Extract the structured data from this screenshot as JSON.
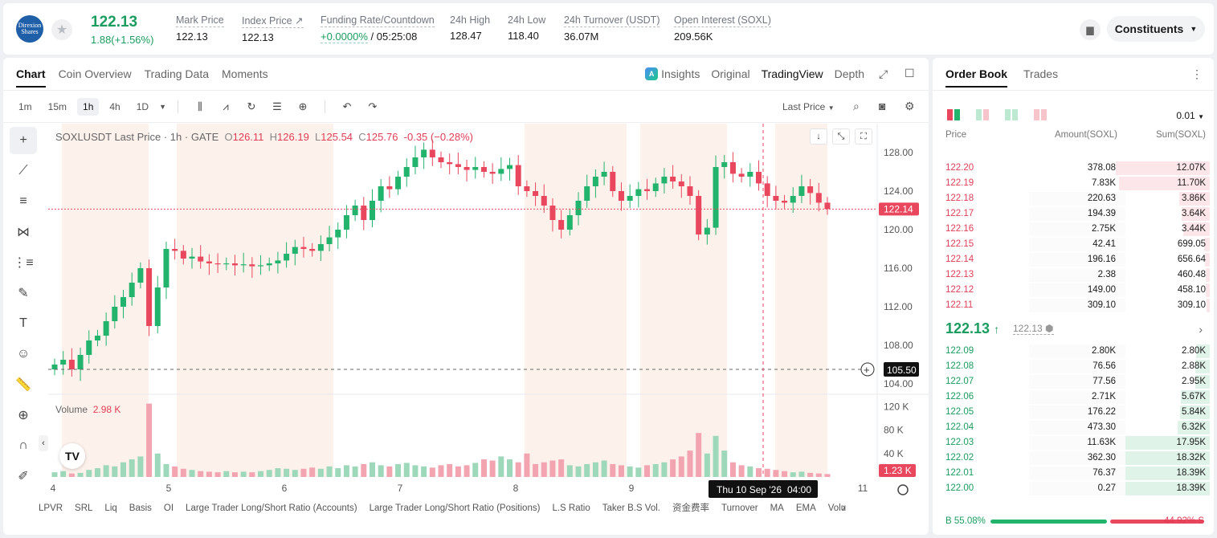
{
  "header": {
    "logo_text": "Direxion",
    "logo_sub": "Shares",
    "last_price": "122.13",
    "change": "1.88(+1.56%)",
    "stats": [
      {
        "label": "Mark Price",
        "value": "122.13"
      },
      {
        "label": "Index Price",
        "value": "122.13"
      },
      {
        "label": "Funding Rate/Countdown",
        "value_a": "+0.0000%",
        "value_b": "/ 05:25:08"
      },
      {
        "label": "24h High",
        "value": "128.47"
      },
      {
        "label": "24h Low",
        "value": "118.40"
      },
      {
        "label": "24h Turnover (USDT)",
        "value": "36.07M"
      },
      {
        "label": "Open Interest (SOXL)",
        "value": "209.56K"
      }
    ],
    "constituents_label": "Constituents"
  },
  "chart_panel": {
    "tabs": [
      "Chart",
      "Coin Overview",
      "Trading Data",
      "Moments"
    ],
    "right_tabs": {
      "insights": "Insights",
      "original": "Original",
      "tradingview": "TradingView",
      "depth": "Depth"
    },
    "timeframes": [
      "1m",
      "15m",
      "1h",
      "4h",
      "1D"
    ],
    "active_timeframe": "1h",
    "price_source": "Last Price",
    "ohlc": {
      "symbol": "SOXLUSDT Last Price · 1h · GATE",
      "o_label": "O",
      "o": "126.11",
      "h_label": "H",
      "h": "126.19",
      "l_label": "L",
      "l": "125.54",
      "c_label": "C",
      "c": "125.76",
      "chg": "-0.35 (−0.28%)"
    },
    "volume_label": "Volume",
    "volume_value": "2.98 K",
    "crosshair_date": "Thu 10 Sep '26",
    "crosshair_time": "04:00",
    "indicators": [
      "LPVR",
      "SRL",
      "Liq",
      "Basis",
      "OI",
      "Large Trader Long/Short Ratio (Accounts)",
      "Large Trader Long/Short Ratio (Positions)",
      "L.S Ratio",
      "Taker B.S Vol.",
      "资金费率",
      "Turnover",
      "MA",
      "EMA",
      "Volu"
    ]
  },
  "chart_data": {
    "type": "candlestick",
    "price_axis": {
      "ticks": [
        "128.00",
        "124.00",
        "120.00",
        "116.00",
        "112.00",
        "108.00",
        "104.00"
      ],
      "min": 103.5,
      "max": 131.0
    },
    "volume_axis": {
      "ticks": [
        "120 K",
        "80 K",
        "40 K"
      ],
      "max": 130
    },
    "x_ticks": [
      "4",
      "5",
      "6",
      "7",
      "8",
      "9",
      "10",
      "11"
    ],
    "last_price_tag": "122.14",
    "last_price": 122.14,
    "crosshair_price_tag": "105.50",
    "crosshair_price": 105.5,
    "last_volume_tag": "1.23 K",
    "close_path": [
      106.0,
      106.5,
      105.5,
      107.0,
      108.5,
      109.0,
      110.5,
      112.0,
      113.0,
      114.5,
      116.0,
      110.0,
      114.0,
      118.0,
      117.8,
      117.0,
      117.2,
      116.7,
      116.5,
      116.4,
      116.5,
      116.3,
      116.4,
      116.2,
      116.3,
      116.5,
      116.8,
      117.5,
      118.2,
      118.0,
      117.8,
      118.5,
      119.2,
      120.0,
      121.5,
      122.5,
      121.0,
      123.0,
      124.5,
      124.2,
      125.5,
      126.5,
      127.5,
      128.3,
      127.5,
      127.0,
      126.8,
      126.5,
      126.2,
      126.5,
      126.0,
      125.8,
      126.3,
      126.7,
      124.5,
      124.0,
      123.5,
      122.5,
      121.0,
      120.0,
      121.5,
      123.0,
      124.5,
      125.5,
      126.0,
      124.0,
      123.0,
      123.5,
      124.2,
      124.0,
      124.8,
      125.5,
      125.0,
      124.5,
      123.5,
      119.5,
      120.2,
      126.5,
      127.0,
      125.8,
      125.5,
      126.0,
      124.8,
      123.5,
      123.0,
      122.8,
      123.5,
      124.5,
      123.8,
      122.8,
      122.14
    ],
    "volume_path": [
      8,
      10,
      6,
      7,
      12,
      15,
      20,
      18,
      25,
      30,
      35,
      125,
      40,
      22,
      18,
      14,
      12,
      10,
      9,
      8,
      10,
      8,
      9,
      8,
      10,
      12,
      15,
      14,
      12,
      14,
      16,
      14,
      18,
      15,
      20,
      18,
      22,
      25,
      20,
      18,
      22,
      24,
      20,
      18,
      16,
      20,
      22,
      18,
      20,
      24,
      30,
      28,
      35,
      30,
      25,
      40,
      22,
      25,
      28,
      30,
      20,
      18,
      22,
      25,
      28,
      22,
      20,
      18,
      16,
      20,
      22,
      25,
      30,
      35,
      45,
      75,
      40,
      70,
      45,
      25,
      20,
      18,
      15,
      14,
      12,
      10,
      8,
      9,
      7,
      6,
      5
    ]
  },
  "order_book": {
    "tabs": [
      "Order Book",
      "Trades"
    ],
    "tick_size": "0.01",
    "headers": {
      "price": "Price",
      "amount": "Amount(SOXL)",
      "sum": "Sum(SOXL)"
    },
    "asks": [
      {
        "price": "122.20",
        "amount": "378.08",
        "sum": "12.07K",
        "depth": 0.96,
        "amt_depth": 0.0
      },
      {
        "price": "122.19",
        "amount": "7.83K",
        "sum": "11.70K",
        "depth": 0.93,
        "amt_depth": 0.62
      },
      {
        "price": "122.18",
        "amount": "220.63",
        "sum": "3.86K",
        "depth": 0.31,
        "amt_depth": 0.0
      },
      {
        "price": "122.17",
        "amount": "194.39",
        "sum": "3.64K",
        "depth": 0.29,
        "amt_depth": 0.0
      },
      {
        "price": "122.16",
        "amount": "2.75K",
        "sum": "3.44K",
        "depth": 0.27,
        "amt_depth": 0.0
      },
      {
        "price": "122.15",
        "amount": "42.41",
        "sum": "699.05",
        "depth": 0.06,
        "amt_depth": 0.0
      },
      {
        "price": "122.14",
        "amount": "196.16",
        "sum": "656.64",
        "depth": 0.05,
        "amt_depth": 0.0
      },
      {
        "price": "122.13",
        "amount": "2.38",
        "sum": "460.48",
        "depth": 0.04,
        "amt_depth": 0.0
      },
      {
        "price": "122.12",
        "amount": "149.00",
        "sum": "458.10",
        "depth": 0.04,
        "amt_depth": 0.0
      },
      {
        "price": "122.11",
        "amount": "309.10",
        "sum": "309.10",
        "depth": 0.03,
        "amt_depth": 0.0
      }
    ],
    "mid_price": "122.13",
    "mid_mark": "122.13",
    "bids": [
      {
        "price": "122.09",
        "amount": "2.80K",
        "sum": "2.80K",
        "depth": 0.15
      },
      {
        "price": "122.08",
        "amount": "76.56",
        "sum": "2.88K",
        "depth": 0.16
      },
      {
        "price": "122.07",
        "amount": "77.56",
        "sum": "2.95K",
        "depth": 0.16
      },
      {
        "price": "122.06",
        "amount": "2.71K",
        "sum": "5.67K",
        "depth": 0.31
      },
      {
        "price": "122.05",
        "amount": "176.22",
        "sum": "5.84K",
        "depth": 0.32
      },
      {
        "price": "122.04",
        "amount": "473.30",
        "sum": "6.32K",
        "depth": 0.35
      },
      {
        "price": "122.03",
        "amount": "11.63K",
        "sum": "17.95K",
        "depth": 0.98
      },
      {
        "price": "122.02",
        "amount": "362.30",
        "sum": "18.32K",
        "depth": 1.0
      },
      {
        "price": "122.01",
        "amount": "76.37",
        "sum": "18.39K",
        "depth": 1.0
      },
      {
        "price": "122.00",
        "amount": "0.27",
        "sum": "18.39K",
        "depth": 1.0
      }
    ],
    "buy_ratio": "B 55.08%",
    "sell_ratio": "44.92% S",
    "buy_fraction": 0.5508
  }
}
